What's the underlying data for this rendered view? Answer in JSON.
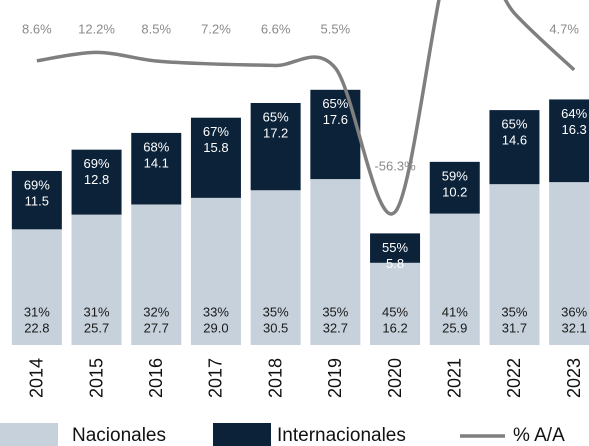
{
  "chart_data": {
    "type": "bar",
    "categories": [
      "2014",
      "2015",
      "2016",
      "2017",
      "2018",
      "2019",
      "2020",
      "2021",
      "2022",
      "2023"
    ],
    "stacked": true,
    "ylim": [
      0,
      68
    ],
    "y2lim": [
      -113.4,
      34.7
    ],
    "series": [
      {
        "name": "Nacionales",
        "color": "#c6d1db",
        "text_color": "#1a1a1a",
        "values": [
          22.8,
          25.7,
          27.7,
          29.0,
          30.5,
          32.7,
          16.2,
          25.9,
          31.7,
          32.1
        ],
        "value_labels": [
          "22.8",
          "25.7",
          "27.7",
          "29.0",
          "30.5",
          "32.7",
          "16.2",
          "25.9",
          "31.7",
          "32.1"
        ],
        "share_labels": [
          "31%",
          "31%",
          "32%",
          "33%",
          "35%",
          "35%",
          "45%",
          "41%",
          "35%",
          "36%"
        ]
      },
      {
        "name": "Internacionales",
        "color": "#0b2239",
        "text_color": "#ffffff",
        "values": [
          11.5,
          12.8,
          14.1,
          15.8,
          17.2,
          17.6,
          5.8,
          10.2,
          14.6,
          16.3
        ],
        "value_labels": [
          "11.5",
          "12.8",
          "14.1",
          "15.8",
          "17.2",
          "17.6",
          "5.8",
          "10.2",
          "14.6",
          "16.3"
        ],
        "share_labels": [
          "69%",
          "69%",
          "68%",
          "67%",
          "65%",
          "65%",
          "55%",
          "59%",
          "65%",
          "64%"
        ]
      },
      {
        "name": "% A/A",
        "type": "line",
        "axis": "y2",
        "color": "#7f7f7f",
        "values": [
          8.6,
          12.2,
          8.5,
          7.2,
          6.6,
          5.5,
          -56.3,
          60,
          29,
          4.7
        ],
        "value_labels": [
          "8.6%",
          "12.2%",
          "8.5%",
          "7.2%",
          "6.6%",
          "5.5%",
          "-56.3%",
          null,
          null,
          "4.7%"
        ]
      }
    ]
  }
}
